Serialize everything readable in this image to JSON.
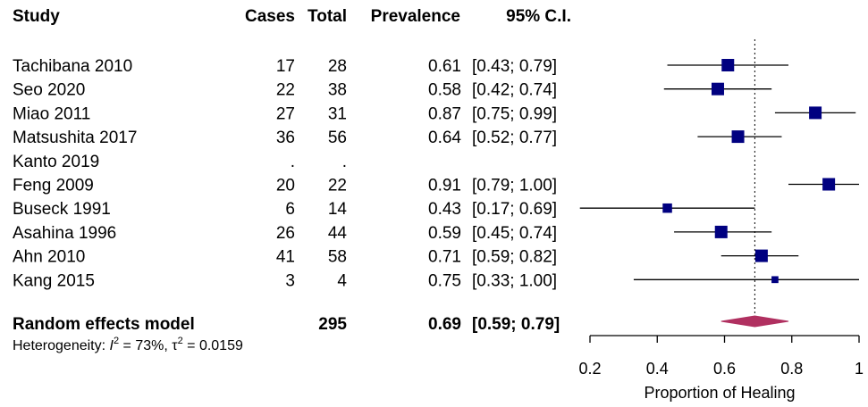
{
  "chart_data": {
    "type": "forest",
    "headers": {
      "study": "Study",
      "cases": "Cases",
      "total": "Total",
      "prevalence": "Prevalence",
      "ci": "95% C.I."
    },
    "studies": [
      {
        "name": "Tachibana 2010",
        "cases": "17",
        "total": "28",
        "prev_text": "0.61",
        "ci_text": "[0.43; 0.79]",
        "est": 0.61,
        "lo": 0.43,
        "hi": 0.79,
        "weight": 1.0
      },
      {
        "name": "Seo 2020",
        "cases": "22",
        "total": "38",
        "prev_text": "0.58",
        "ci_text": "[0.42; 0.74]",
        "est": 0.58,
        "lo": 0.42,
        "hi": 0.74,
        "weight": 1.0
      },
      {
        "name": "Miao 2011",
        "cases": "27",
        "total": "31",
        "prev_text": "0.87",
        "ci_text": "[0.75; 0.99]",
        "est": 0.87,
        "lo": 0.75,
        "hi": 0.99,
        "weight": 1.0
      },
      {
        "name": "Matsushita 2017",
        "cases": "36",
        "total": "56",
        "prev_text": "0.64",
        "ci_text": "[0.52; 0.77]",
        "est": 0.64,
        "lo": 0.52,
        "hi": 0.77,
        "weight": 1.0
      },
      {
        "name": "Kanto 2019",
        "cases": ".",
        "total": ".",
        "prev_text": "",
        "ci_text": "",
        "est": null,
        "lo": null,
        "hi": null,
        "weight": 0
      },
      {
        "name": "Feng 2009",
        "cases": "20",
        "total": "22",
        "prev_text": "0.91",
        "ci_text": "[0.79; 1.00]",
        "est": 0.91,
        "lo": 0.79,
        "hi": 1.0,
        "weight": 1.0
      },
      {
        "name": "Buseck 1991",
        "cases": "6",
        "total": "14",
        "prev_text": "0.43",
        "ci_text": "[0.17; 0.69]",
        "est": 0.43,
        "lo": 0.17,
        "hi": 0.69,
        "weight": 0.75
      },
      {
        "name": "Asahina 1996",
        "cases": "26",
        "total": "44",
        "prev_text": "0.59",
        "ci_text": "[0.45; 0.74]",
        "est": 0.59,
        "lo": 0.45,
        "hi": 0.74,
        "weight": 1.0
      },
      {
        "name": "Ahn 2010",
        "cases": "41",
        "total": "58",
        "prev_text": "0.71",
        "ci_text": "[0.59; 0.82]",
        "est": 0.71,
        "lo": 0.59,
        "hi": 0.82,
        "weight": 1.0
      },
      {
        "name": "Kang 2015",
        "cases": "3",
        "total": "4",
        "prev_text": "0.75",
        "ci_text": "[0.33; 1.00]",
        "est": 0.75,
        "lo": 0.33,
        "hi": 1.0,
        "weight": 0.55
      }
    ],
    "pooled": {
      "name": "Random effects model",
      "total": "295",
      "prev_text": "0.69",
      "ci_text": "[0.59; 0.79]",
      "est": 0.69,
      "lo": 0.59,
      "hi": 0.79
    },
    "heterogeneity": {
      "prefix": "Heterogeneity: ",
      "i_symbol": "I",
      "sup": "2",
      "i_value": " = 73%, ",
      "tau_symbol": "τ",
      "tau_value": " = 0.0159"
    },
    "x_axis": {
      "label": "Proportion of Healing",
      "range": [
        0.2,
        1.0
      ],
      "ticks": [
        "0.2",
        "0.4",
        "0.6",
        "0.8",
        "1"
      ],
      "tick_values": [
        0.2,
        0.4,
        0.6,
        0.8,
        1.0
      ]
    },
    "colors": {
      "study_marker": "#000080",
      "pooled_diamond": "#b03060",
      "lines": "#000000"
    }
  }
}
